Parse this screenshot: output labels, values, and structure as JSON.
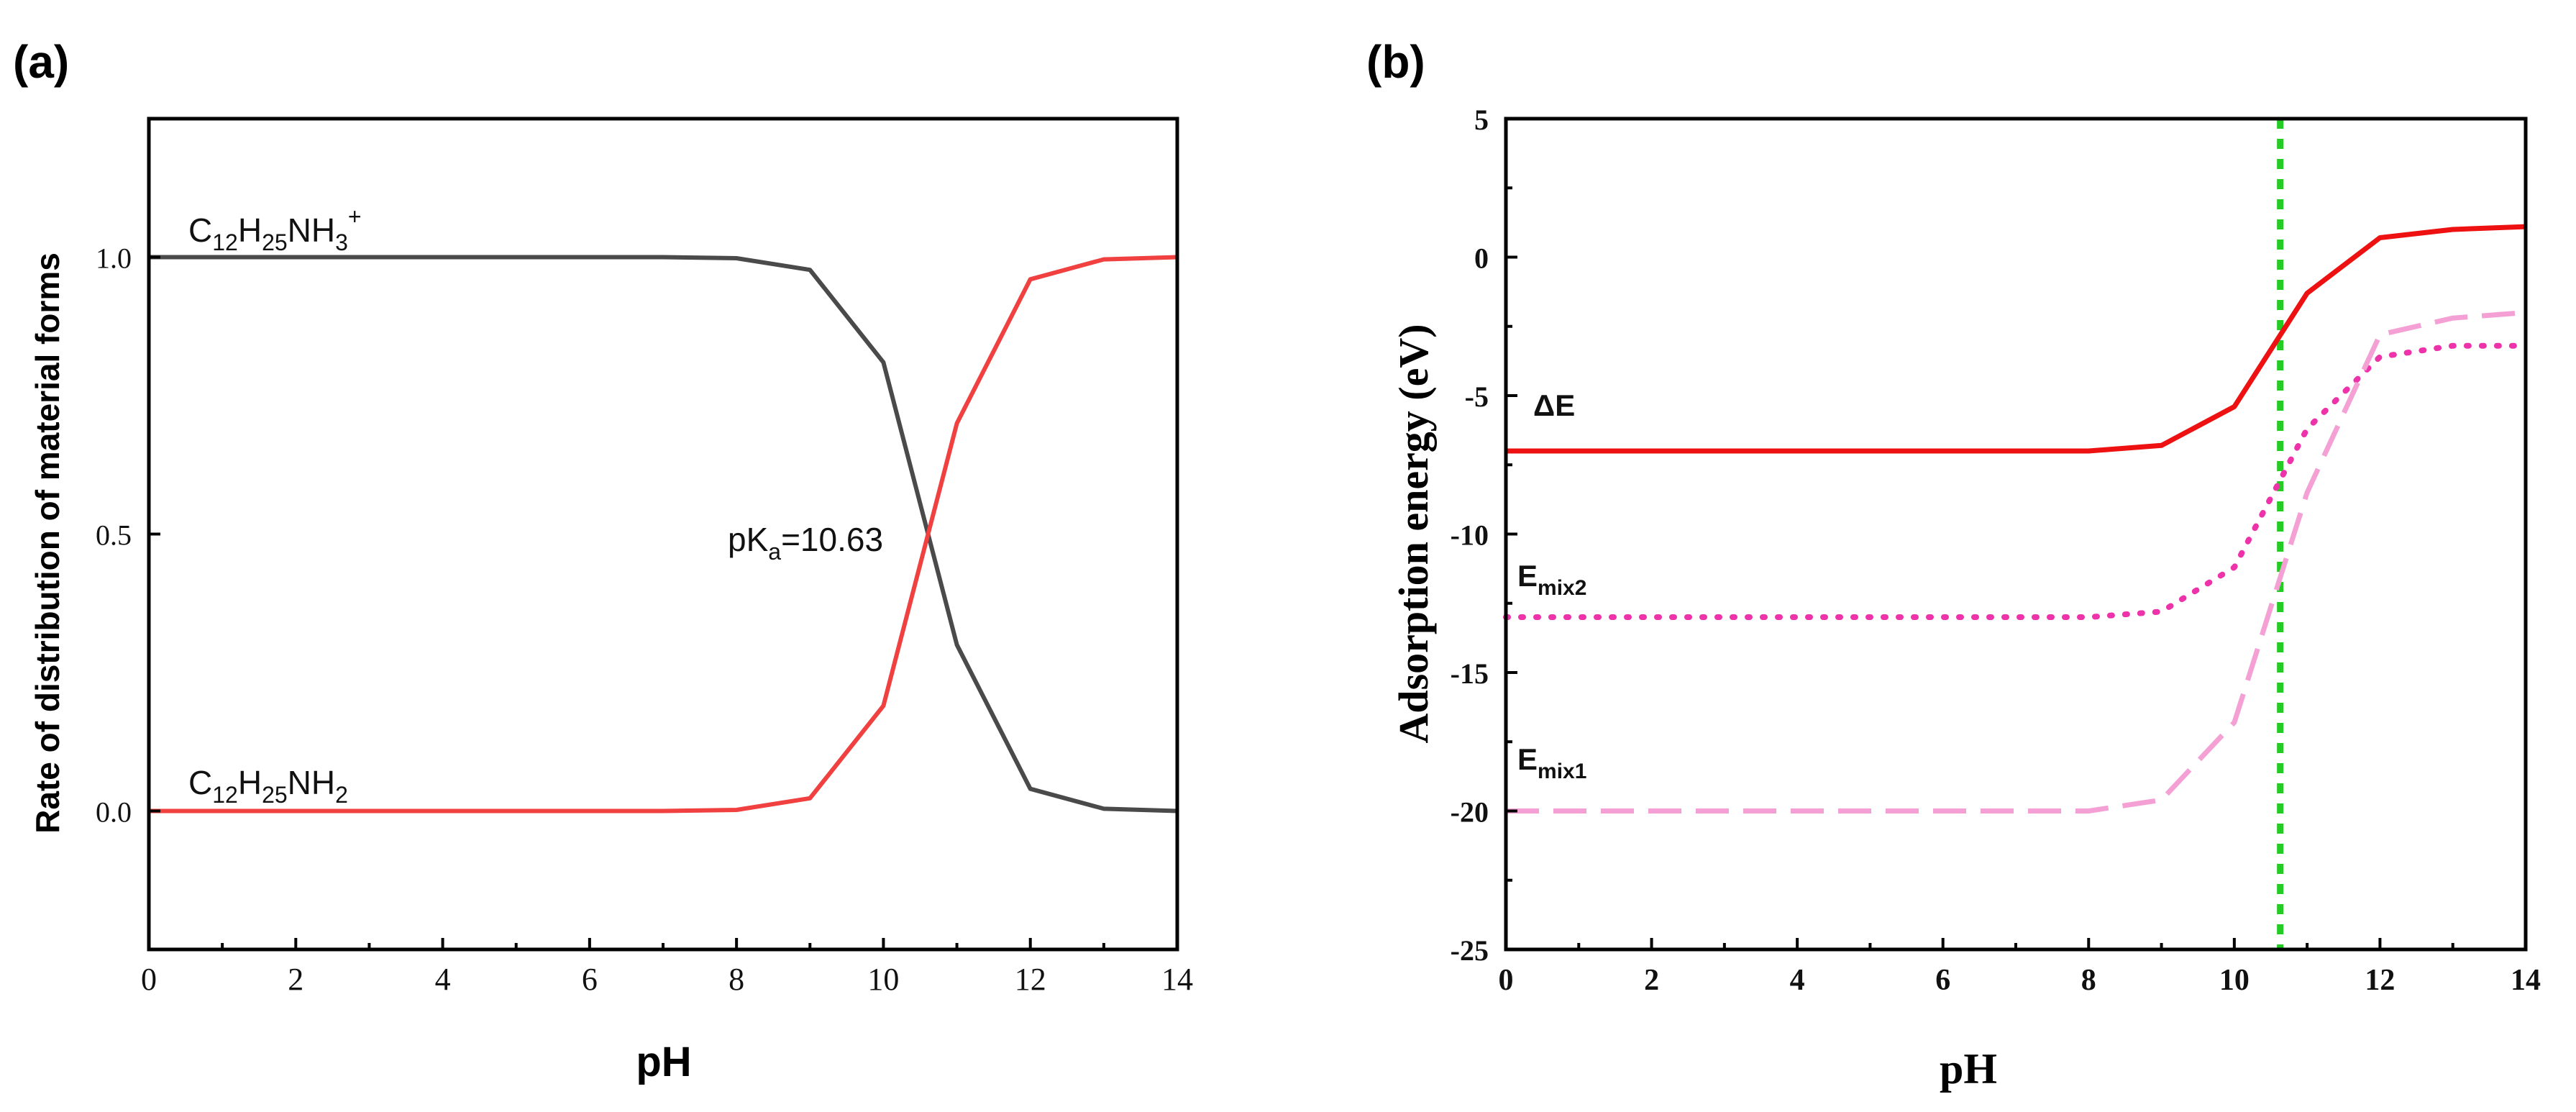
{
  "chart_data": [
    {
      "panel_label": "(a)",
      "type": "line",
      "xlabel": "pH",
      "ylabel": "Rate of distribution of material forms",
      "xlim": [
        0,
        14
      ],
      "ylim": [
        -0.25,
        1.25
      ],
      "x_ticks": [
        0,
        2,
        4,
        6,
        8,
        10,
        12,
        14
      ],
      "y_ticks": [
        0.0,
        0.5,
        1.0
      ],
      "y_tick_labels": [
        "0.0",
        "0.5",
        "1.0"
      ],
      "x_tick_labels": [
        "0",
        "2",
        "4",
        "6",
        "8",
        "10",
        "12",
        "14"
      ],
      "x": [
        0,
        1,
        2,
        3,
        4,
        5,
        6,
        7,
        8,
        9,
        10,
        11,
        12,
        13,
        14
      ],
      "series": [
        {
          "name": "C12H25NH3+",
          "color": "#4a4a4a",
          "values": [
            1.0,
            1.0,
            1.0,
            1.0,
            1.0,
            1.0,
            1.0,
            1.0,
            0.998,
            0.977,
            0.81,
            0.3,
            0.04,
            0.004,
            0.0
          ]
        },
        {
          "name": "C12H25NH2",
          "color": "#f04040",
          "values": [
            0.0,
            0.0,
            0.0,
            0.0,
            0.0,
            0.0,
            0.0,
            0.0,
            0.002,
            0.023,
            0.19,
            0.7,
            0.96,
            0.996,
            1.0
          ]
        }
      ],
      "labels": {
        "cation": {
          "base": "C",
          "s1": "12",
          "mid": "H",
          "s2": "25",
          "tail": "NH",
          "s3": "3",
          "sup": "+"
        },
        "neutral": {
          "base": "C",
          "s1": "12",
          "mid": "H",
          "s2": "25",
          "tail": "NH",
          "s3": "2"
        },
        "pka": {
          "pre": "pK",
          "sub": "a",
          "post": "=10.63"
        }
      }
    },
    {
      "panel_label": "(b)",
      "type": "line",
      "xlabel": "pH",
      "ylabel": "Adsorption energy (eV)",
      "xlim": [
        0,
        14
      ],
      "ylim": [
        -25,
        5
      ],
      "x_ticks": [
        0,
        2,
        4,
        6,
        8,
        10,
        12,
        14
      ],
      "x_tick_labels": [
        "0",
        "2",
        "4",
        "6",
        "8",
        "10",
        "12",
        "14"
      ],
      "y_ticks": [
        -25,
        -20,
        -15,
        -10,
        -5,
        0,
        5
      ],
      "y_tick_labels": [
        "-25",
        "-20",
        "-15",
        "-10",
        "-5",
        "0",
        "5"
      ],
      "vline": {
        "x": 10.63,
        "color": "#22cc22"
      },
      "series": [
        {
          "name": "ΔE",
          "color": "#ee1111",
          "style": "solid",
          "x": [
            0,
            1,
            2,
            3,
            4,
            5,
            6,
            7,
            8,
            9,
            10,
            11,
            12,
            13,
            14
          ],
          "values": [
            -7.0,
            -7.0,
            -7.0,
            -7.0,
            -7.0,
            -7.0,
            -7.0,
            -7.0,
            -7.0,
            -6.8,
            -5.4,
            -1.3,
            0.7,
            1.0,
            1.1
          ]
        },
        {
          "name": "Emix2",
          "color": "#ee33aa",
          "style": "dotted",
          "x": [
            0,
            1,
            2,
            3,
            4,
            5,
            6,
            7,
            8,
            9,
            10,
            11,
            12,
            13,
            14
          ],
          "values": [
            -13.0,
            -13.0,
            -13.0,
            -13.0,
            -13.0,
            -13.0,
            -13.0,
            -13.0,
            -13.0,
            -12.8,
            -11.2,
            -6.2,
            -3.6,
            -3.2,
            -3.2
          ]
        },
        {
          "name": "Emix1",
          "color": "#f4a0d4",
          "style": "dashed",
          "x": [
            0,
            1,
            2,
            3,
            4,
            5,
            6,
            7,
            8,
            9,
            10,
            11,
            12,
            13,
            14
          ],
          "values": [
            -20.0,
            -20.0,
            -20.0,
            -20.0,
            -20.0,
            -20.0,
            -20.0,
            -20.0,
            -20.0,
            -19.6,
            -16.8,
            -8.5,
            -2.8,
            -2.2,
            -2.0
          ]
        }
      ],
      "labels": {
        "delta_e": "ΔE",
        "emix2": {
          "base": "E",
          "sub": "mix2"
        },
        "emix1": {
          "base": "E",
          "sub": "mix1"
        }
      }
    }
  ]
}
